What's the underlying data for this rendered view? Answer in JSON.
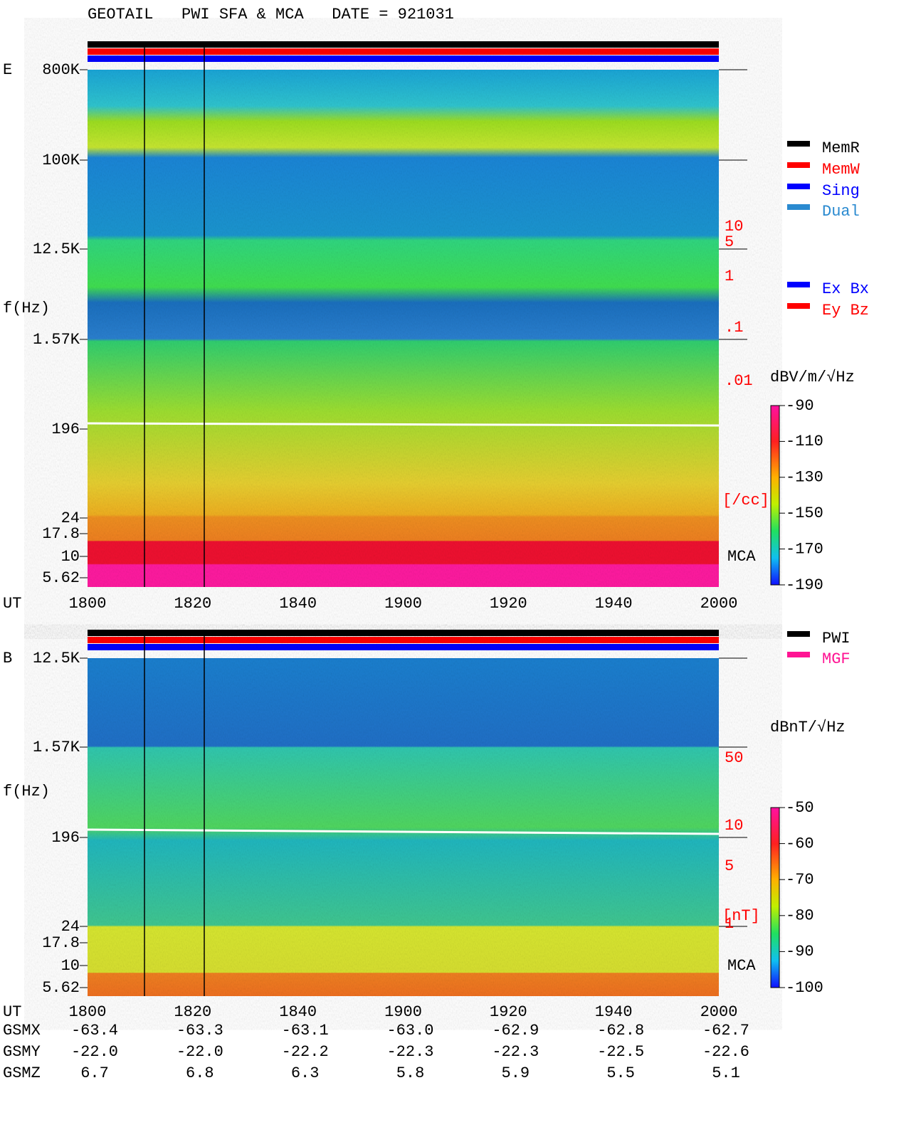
{
  "title": "GEOTAIL   PWI SFA & MCA   DATE = 921031",
  "panels": [
    {
      "label": "E",
      "ylabel": "f(Hz)",
      "xlabel": "UT",
      "yticks": [
        "800K",
        "100K",
        "12.5K",
        "1.57K",
        "196",
        "24",
        "17.8",
        "10",
        "5.62"
      ],
      "right_scale": [
        "10",
        "5",
        "1",
        ".1",
        ".01"
      ],
      "right_unit": "[/cc]",
      "mca": "MCA",
      "xticks": [
        "1800",
        "1820",
        "1840",
        "1900",
        "1920",
        "1940",
        "2000"
      ],
      "colorbar": {
        "unit": "dBV/m/√Hz",
        "ticks": [
          -90,
          -110,
          -130,
          -150,
          -170,
          -190
        ]
      },
      "legend": [
        {
          "name": "MemR",
          "color": "#000000"
        },
        {
          "name": "MemW",
          "color": "#ff0000"
        },
        {
          "name": "Sing",
          "color": "#0000ff"
        },
        {
          "name": "Dual",
          "color": "#2a8ad0"
        }
      ],
      "legend2": [
        {
          "name": "Ex Bx",
          "color": "#0000ff"
        },
        {
          "name": "Ey Bz",
          "color": "#ff0000"
        }
      ]
    },
    {
      "label": "B",
      "ylabel": "f(Hz)",
      "xlabel": "UT",
      "yticks": [
        "12.5K",
        "1.57K",
        "196",
        "24",
        "17.8",
        "10",
        "5.62"
      ],
      "right_scale": [
        "50",
        "10",
        "5",
        "1"
      ],
      "right_unit": "[nT]",
      "mca": "MCA",
      "xticks": [
        "1800",
        "1820",
        "1840",
        "1900",
        "1920",
        "1940",
        "2000"
      ],
      "colorbar": {
        "unit": "dBnT/√Hz",
        "ticks": [
          -50,
          -60,
          -70,
          -80,
          -90,
          -100
        ]
      },
      "legend": [
        {
          "name": "PWI",
          "color": "#000000"
        },
        {
          "name": "MGF",
          "color": "#ff1493"
        }
      ]
    }
  ],
  "orbit": {
    "rows": [
      {
        "name": "GSMX",
        "values": [
          "-63.4",
          "-63.3",
          "-63.1",
          "-63.0",
          "-62.9",
          "-62.8",
          "-62.7"
        ]
      },
      {
        "name": "GSMY",
        "values": [
          "-22.0",
          "-22.0",
          "-22.2",
          "-22.3",
          "-22.3",
          "-22.5",
          "-22.6"
        ]
      },
      {
        "name": "GSMZ",
        "values": [
          "6.7",
          "6.8",
          "6.3",
          "5.8",
          "5.9",
          "5.5",
          "5.1"
        ]
      }
    ]
  }
}
